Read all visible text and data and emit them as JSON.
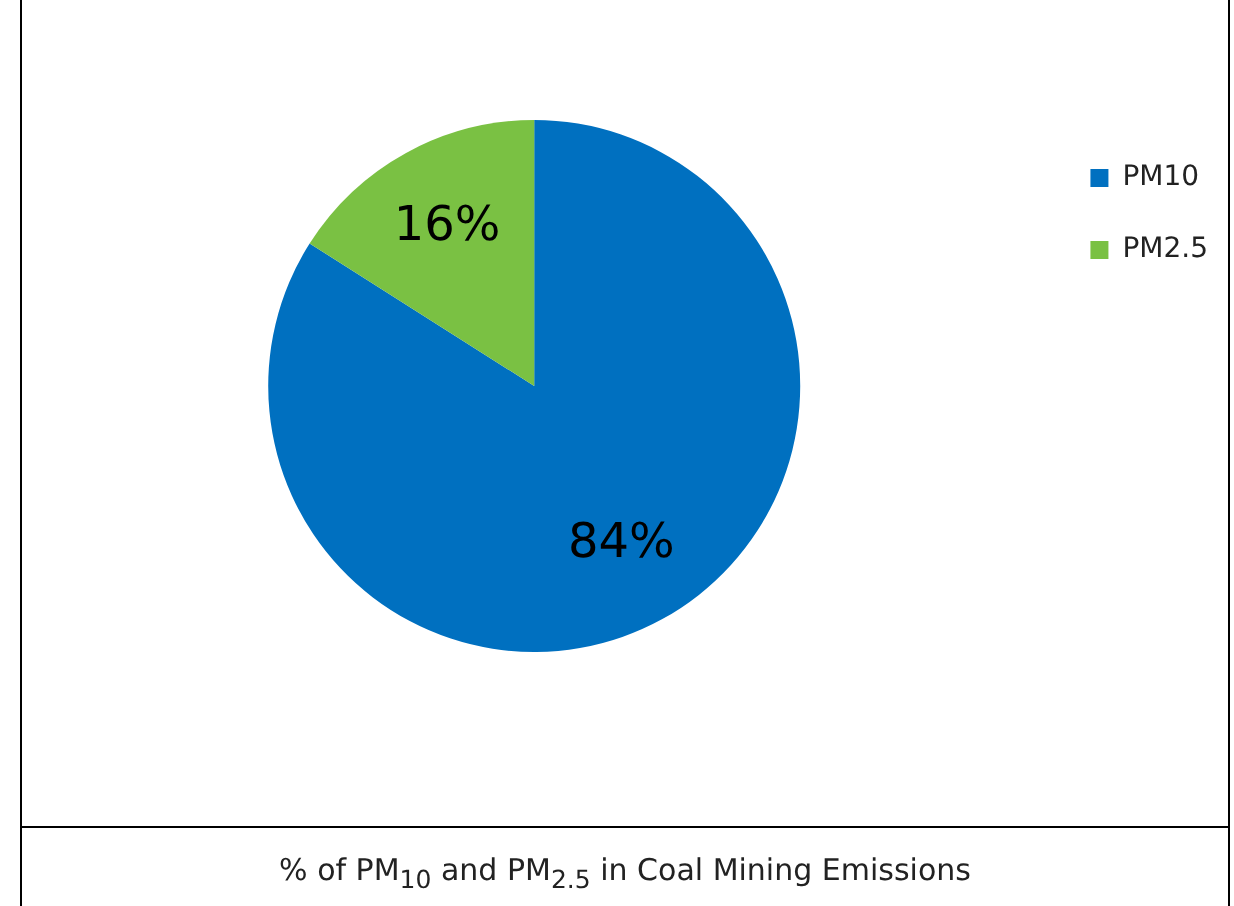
{
  "chart_data": {
    "type": "pie",
    "title": "% of PM$_{10}$ and PM$_{2.5}$ in Coal Mining Emissions",
    "categories": [
      "PM10",
      "PM2.5"
    ],
    "values": [
      84,
      16
    ],
    "colors": [
      "#0070c0",
      "#7ac143"
    ],
    "value_labels": [
      "84%",
      "16%"
    ],
    "legend": "top right"
  }
}
